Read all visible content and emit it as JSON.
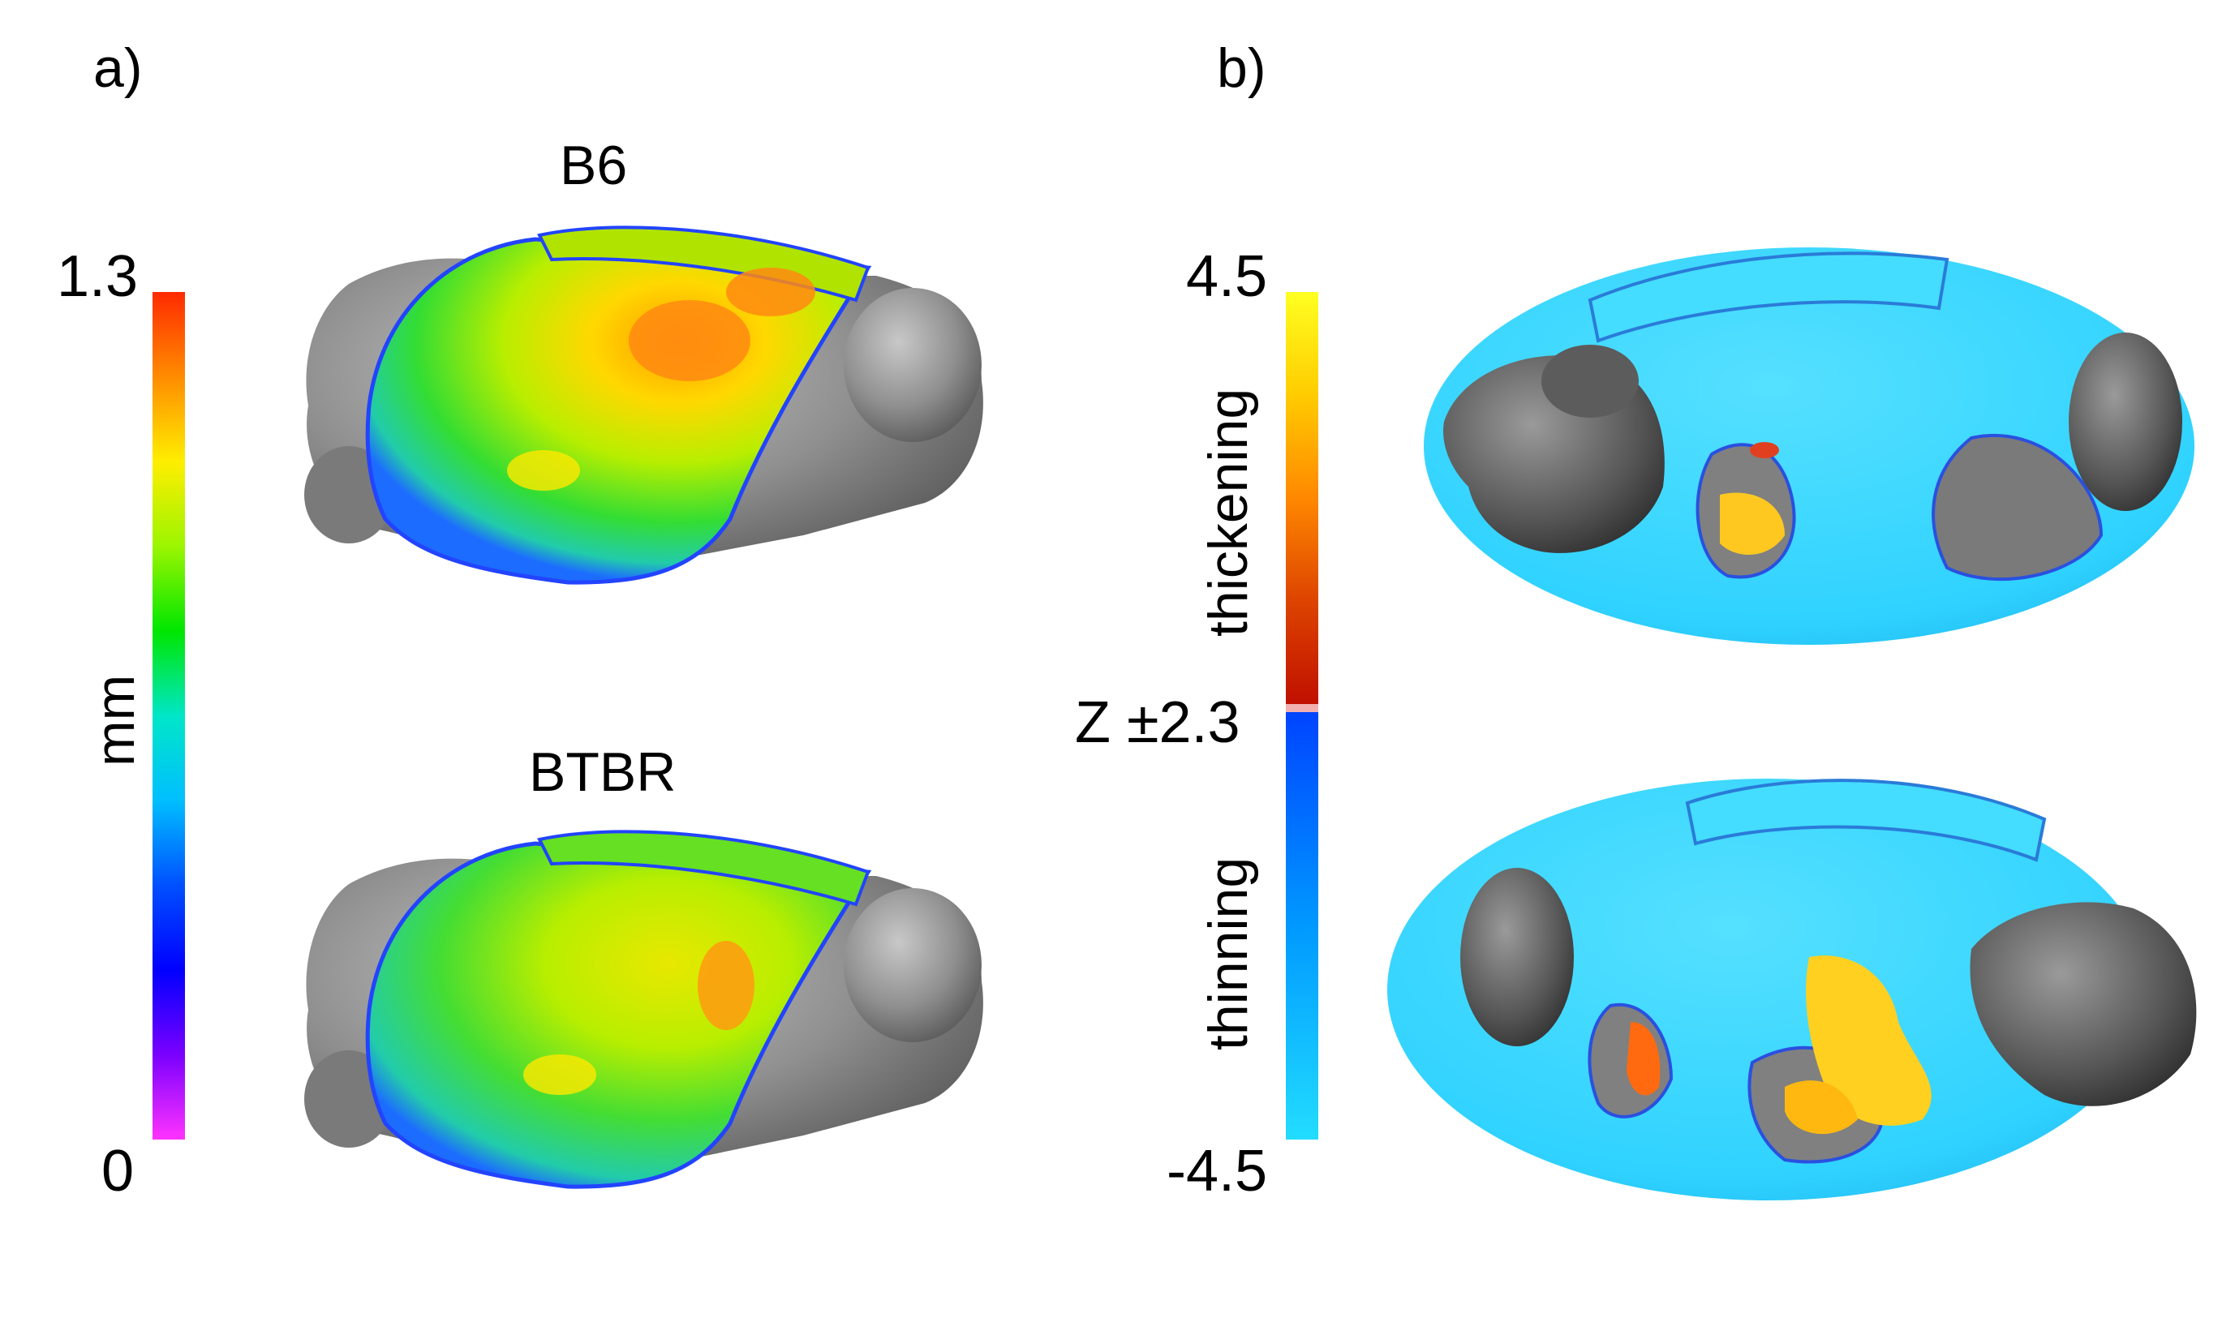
{
  "panel_a": {
    "label": "a)",
    "title_top": "B6",
    "title_bottom": "BTBR",
    "colorbar": {
      "max_label": "1.3",
      "min_label": "0",
      "unit_label": "mm",
      "colors": [
        "#ff2a00",
        "#ff8c00",
        "#ffee00",
        "#9cf500",
        "#00e600",
        "#00e6c8",
        "#00bfff",
        "#0050ff",
        "#0000ff",
        "#7a00ff",
        "#ff33ff"
      ]
    }
  },
  "panel_b": {
    "label": "b)",
    "colorbar": {
      "max_label": "4.5",
      "min_label": "-4.5",
      "threshold_label": "Z ±2.3",
      "upper_label": "thickening",
      "lower_label": "thinning",
      "upper_colors": [
        "#ffff22",
        "#ffcc00",
        "#ff8800",
        "#dd4400",
        "#c01000"
      ],
      "lower_colors": [
        "#0044ff",
        "#0099ff",
        "#22ddff"
      ]
    }
  },
  "surface_colors": {
    "gray": "#8a8a8a",
    "cyan": "#33d6ff",
    "green": "#33dd33",
    "yellow": "#ddee22",
    "orange": "#ff9900"
  }
}
